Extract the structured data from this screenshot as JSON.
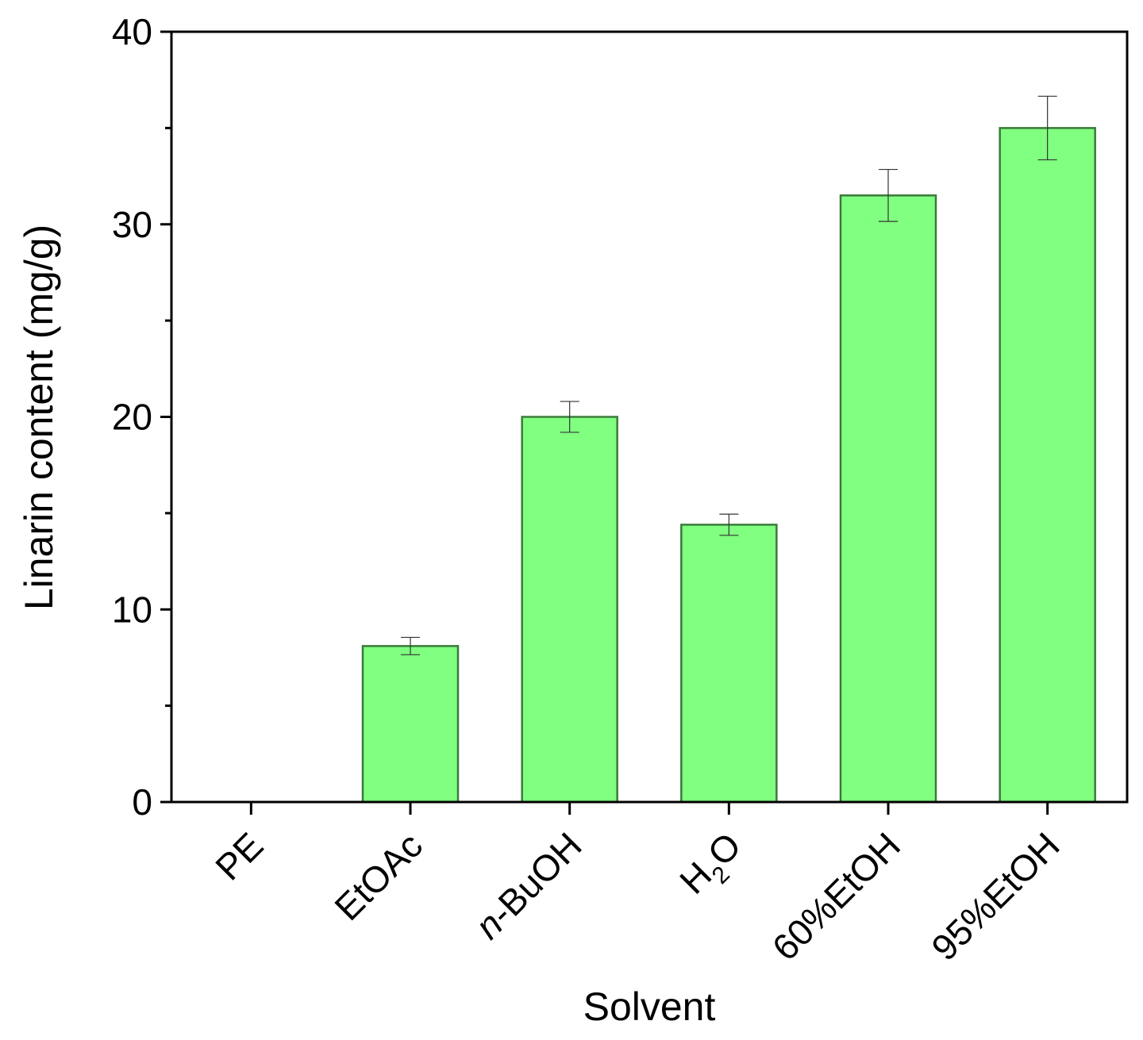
{
  "chart_data": {
    "type": "bar",
    "xlabel": "Solvent",
    "ylabel": "Linarin content (mg/g)",
    "ylim": [
      0,
      40
    ],
    "yticks": [
      0,
      10,
      20,
      30,
      40
    ],
    "categories": [
      {
        "label": "PE"
      },
      {
        "label": "EtOAc"
      },
      {
        "label": "-BuOH",
        "prefix_italic": "n"
      },
      {
        "label": "H",
        "subscript": "2",
        "suffix": "O"
      },
      {
        "label": "60%EtOH"
      },
      {
        "label": "95%EtOH"
      }
    ],
    "values": [
      0,
      8.1,
      20.0,
      14.4,
      31.5,
      35.0
    ],
    "errors": [
      0,
      0.45,
      0.8,
      0.55,
      1.35,
      1.65
    ],
    "bar_color": "#80ff80",
    "bar_edge_color": "#3a7a3a",
    "grid": false,
    "legend": "none"
  }
}
